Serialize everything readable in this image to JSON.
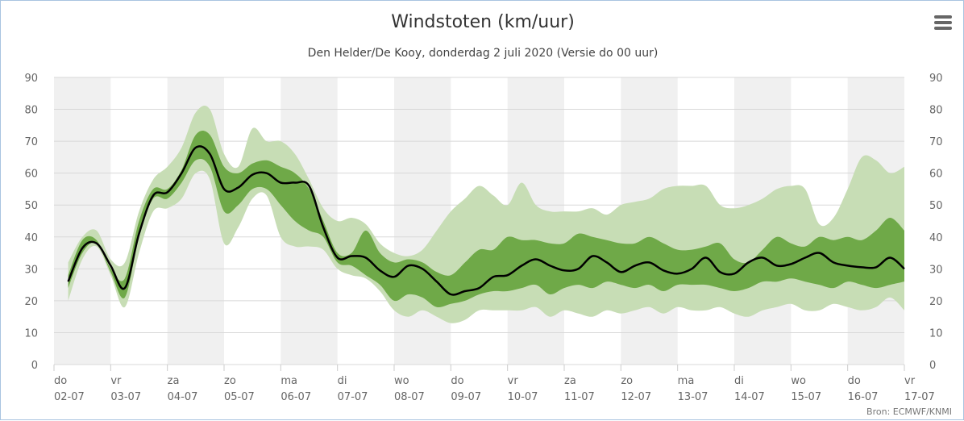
{
  "chart_data": {
    "type": "area",
    "title": "Windstoten (km/uur)",
    "subtitle": "Den Helder/De Kooy, donderdag 2 juli 2020 (Versie do 00 uur)",
    "ylim": [
      0,
      90
    ],
    "yticks": [
      0,
      10,
      20,
      30,
      40,
      50,
      60,
      70,
      80,
      90
    ],
    "xlim": [
      0,
      15
    ],
    "x_ticks": [
      {
        "day": "do",
        "date": "02-07"
      },
      {
        "day": "vr",
        "date": "03-07"
      },
      {
        "day": "za",
        "date": "04-07"
      },
      {
        "day": "zo",
        "date": "05-07"
      },
      {
        "day": "ma",
        "date": "06-07"
      },
      {
        "day": "di",
        "date": "07-07"
      },
      {
        "day": "wo",
        "date": "08-07"
      },
      {
        "day": "do",
        "date": "09-07"
      },
      {
        "day": "vr",
        "date": "10-07"
      },
      {
        "day": "za",
        "date": "11-07"
      },
      {
        "day": "zo",
        "date": "12-07"
      },
      {
        "day": "ma",
        "date": "13-07"
      },
      {
        "day": "di",
        "date": "14-07"
      },
      {
        "day": "wo",
        "date": "15-07"
      },
      {
        "day": "do",
        "date": "16-07"
      },
      {
        "day": "vr",
        "date": "17-07"
      }
    ],
    "shaded_days": [
      0,
      2,
      4,
      6,
      8,
      10,
      12,
      14
    ],
    "grid": true,
    "colors": {
      "outer_band": "#c7ddb5",
      "inner_band": "#6fa948",
      "median_line": "#000000",
      "day_shade": "#f0f0f0",
      "grid": "#d8d8d8"
    },
    "series": [
      {
        "role": "outer_band",
        "x": [
          0.25,
          0.5,
          0.75,
          1.0,
          1.25,
          1.5,
          1.75,
          2.0,
          2.25,
          2.5,
          2.75,
          3.0,
          3.25,
          3.5,
          3.75,
          4.0,
          4.25,
          4.5,
          4.75,
          5.0,
          5.25,
          5.5,
          5.75,
          6.0,
          6.25,
          6.5,
          6.75,
          7.0,
          7.25,
          7.5,
          7.75,
          8.0,
          8.25,
          8.5,
          8.75,
          9.0,
          9.25,
          9.5,
          9.75,
          10.0,
          10.25,
          10.5,
          10.75,
          11.0,
          11.25,
          11.5,
          11.75,
          12.0,
          12.25,
          12.5,
          12.75,
          13.0,
          13.25,
          13.5,
          13.75,
          14.0,
          14.25,
          14.5,
          14.75,
          15.0
        ],
        "low": [
          20,
          33,
          37,
          28,
          18,
          35,
          48,
          49,
          52,
          60,
          58,
          38,
          43,
          52,
          53,
          40,
          37,
          37,
          36,
          30,
          28,
          27,
          23,
          17,
          15,
          17,
          15,
          13,
          14,
          17,
          17,
          17,
          17,
          18,
          15,
          17,
          16,
          15,
          17,
          16,
          17,
          18,
          16,
          18,
          17,
          17,
          18,
          16,
          15,
          17,
          18,
          19,
          17,
          17,
          19,
          18,
          17,
          18,
          21,
          17
        ],
        "high": [
          32,
          40,
          42,
          33,
          32,
          48,
          58,
          62,
          68,
          79,
          80,
          66,
          62,
          74,
          70,
          70,
          66,
          58,
          49,
          45,
          46,
          44,
          38,
          35,
          34,
          36,
          42,
          48,
          52,
          56,
          53,
          50,
          57,
          50,
          48,
          48,
          48,
          49,
          47,
          50,
          51,
          52,
          55,
          56,
          56,
          56,
          50,
          49,
          50,
          52,
          55,
          56,
          55,
          44,
          46,
          55,
          65,
          64,
          60,
          62
        ]
      },
      {
        "role": "inner_band",
        "x": [
          0.25,
          0.5,
          0.75,
          1.0,
          1.25,
          1.5,
          1.75,
          2.0,
          2.25,
          2.5,
          2.75,
          3.0,
          3.25,
          3.5,
          3.75,
          4.0,
          4.25,
          4.5,
          4.75,
          5.0,
          5.25,
          5.5,
          5.75,
          6.0,
          6.25,
          6.5,
          6.75,
          7.0,
          7.25,
          7.5,
          7.75,
          8.0,
          8.25,
          8.5,
          8.75,
          9.0,
          9.25,
          9.5,
          9.75,
          10.0,
          10.25,
          10.5,
          10.75,
          11.0,
          11.25,
          11.5,
          11.75,
          12.0,
          12.25,
          12.5,
          12.75,
          13.0,
          13.25,
          13.5,
          13.75,
          14.0,
          14.25,
          14.5,
          14.75,
          15.0
        ],
        "low": [
          24,
          35,
          38,
          29,
          21,
          40,
          52,
          52,
          57,
          64,
          62,
          48,
          50,
          55,
          55,
          50,
          45,
          42,
          40,
          32,
          31,
          28,
          25,
          20,
          22,
          21,
          18,
          19,
          20,
          22,
          23,
          23,
          24,
          25,
          22,
          24,
          25,
          24,
          26,
          25,
          24,
          25,
          23,
          25,
          25,
          25,
          24,
          23,
          24,
          26,
          26,
          27,
          26,
          25,
          24,
          26,
          25,
          24,
          25,
          26
        ],
        "high": [
          28,
          39,
          39,
          30,
          27,
          45,
          55,
          55,
          61,
          72,
          72,
          62,
          60,
          63,
          64,
          62,
          60,
          55,
          45,
          35,
          35,
          42,
          35,
          32,
          33,
          32,
          29,
          28,
          32,
          36,
          36,
          40,
          39,
          39,
          38,
          38,
          41,
          40,
          39,
          38,
          38,
          40,
          38,
          36,
          36,
          37,
          38,
          33,
          32,
          36,
          40,
          38,
          37,
          40,
          39,
          40,
          39,
          42,
          46,
          42
        ]
      },
      {
        "name": "median",
        "role": "median_line",
        "x": [
          0.25,
          0.5,
          0.75,
          1.0,
          1.25,
          1.5,
          1.75,
          2.0,
          2.25,
          2.5,
          2.75,
          3.0,
          3.25,
          3.5,
          3.75,
          4.0,
          4.25,
          4.5,
          4.75,
          5.0,
          5.25,
          5.5,
          5.75,
          6.0,
          6.25,
          6.5,
          6.75,
          7.0,
          7.25,
          7.5,
          7.75,
          8.0,
          8.25,
          8.5,
          8.75,
          9.0,
          9.25,
          9.5,
          9.75,
          10.0,
          10.25,
          10.5,
          10.75,
          11.0,
          11.25,
          11.5,
          11.75,
          12.0,
          12.25,
          12.5,
          12.75,
          13.0,
          13.25,
          13.5,
          13.75,
          14.0,
          14.25,
          14.5,
          14.75,
          15.0
        ],
        "values": [
          26,
          36.5,
          38,
          31,
          24,
          41,
          53,
          54,
          60,
          68,
          66,
          55,
          55.5,
          59.5,
          60,
          57,
          57,
          56,
          43,
          33.5,
          34,
          33.5,
          29.5,
          27.5,
          31,
          30,
          26,
          22,
          23,
          24,
          27.5,
          28,
          31,
          33,
          31,
          29.5,
          30,
          34,
          32,
          29,
          31,
          32,
          29.5,
          28.5,
          30,
          33.5,
          29,
          28.5,
          32,
          33.5,
          31,
          31.5,
          33.5,
          35,
          32,
          31,
          30.5,
          30.5,
          33.5,
          30
        ]
      }
    ]
  },
  "credits": "Bron: ECMWF/KNMI",
  "menu": {
    "icon": "hamburger-icon"
  }
}
